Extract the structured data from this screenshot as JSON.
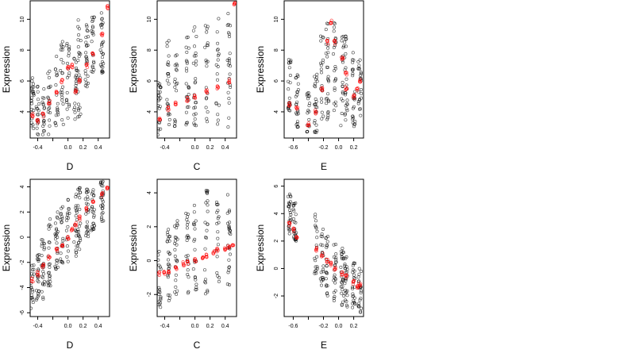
{
  "figure": {
    "background": "#ffffff",
    "point_color_black": "#000000",
    "point_color_red": "#ff0000"
  },
  "chart_data": [
    {
      "type": "scatter",
      "panel": "top-left",
      "xlabel": "D",
      "ylabel": "Expression",
      "xlim": [
        -0.5,
        0.55
      ],
      "ylim": [
        2.3,
        11.2
      ],
      "xticks": [
        -0.4,
        -0.2,
        0.0,
        0.2,
        0.4
      ],
      "xtick_labels": [
        "-0.4",
        "",
        "0.0",
        "0.2",
        "0.4"
      ],
      "yticks": [
        4,
        6,
        8,
        10
      ],
      "ytick_labels": [
        "4",
        "6",
        "8",
        "10"
      ],
      "black_columns": [
        {
          "x": -0.47,
          "ymin": 2.5,
          "ymax": 6.3
        },
        {
          "x": -0.4,
          "ymin": 2.5,
          "ymax": 5.8
        },
        {
          "x": -0.33,
          "ymin": 2.5,
          "ymax": 5.5
        },
        {
          "x": -0.25,
          "ymin": 2.5,
          "ymax": 7.0
        },
        {
          "x": -0.15,
          "ymin": 2.6,
          "ymax": 8.0
        },
        {
          "x": -0.08,
          "ymin": 3.0,
          "ymax": 8.6
        },
        {
          "x": 0.0,
          "ymin": 3.2,
          "ymax": 9.5
        },
        {
          "x": 0.1,
          "ymin": 3.5,
          "ymax": 7.5
        },
        {
          "x": 0.15,
          "ymin": 3.5,
          "ymax": 10.0
        },
        {
          "x": 0.25,
          "ymin": 5.5,
          "ymax": 9.8
        },
        {
          "x": 0.33,
          "ymin": 6.0,
          "ymax": 10.3
        },
        {
          "x": 0.45,
          "ymin": 6.5,
          "ymax": 10.5
        }
      ],
      "red_points": [
        {
          "x": -0.47,
          "y": 3.8
        },
        {
          "x": -0.4,
          "y": 3.4
        },
        {
          "x": -0.33,
          "y": 3.8
        },
        {
          "x": -0.25,
          "y": 4.6
        },
        {
          "x": -0.15,
          "y": 5.3
        },
        {
          "x": -0.08,
          "y": 6.0
        },
        {
          "x": 0.0,
          "y": 6.8
        },
        {
          "x": 0.05,
          "y": 7.0
        },
        {
          "x": 0.1,
          "y": 5.3
        },
        {
          "x": 0.15,
          "y": 6.0
        },
        {
          "x": 0.25,
          "y": 7.0
        },
        {
          "x": 0.33,
          "y": 7.8
        },
        {
          "x": 0.45,
          "y": 9.0
        },
        {
          "x": 0.52,
          "y": 10.8
        }
      ]
    },
    {
      "type": "scatter",
      "panel": "top-middle",
      "xlabel": "C",
      "ylabel": "Expression",
      "xlim": [
        -0.5,
        0.55
      ],
      "ylim": [
        2.3,
        11.2
      ],
      "xticks": [
        -0.4,
        -0.2,
        0.0,
        0.2,
        0.4
      ],
      "xtick_labels": [
        "-0.4",
        "",
        "0.0",
        "0.2",
        "0.4"
      ],
      "yticks": [
        4,
        6,
        8,
        10
      ],
      "ytick_labels": [
        "4",
        "6",
        "8",
        "10"
      ],
      "black_columns": [
        {
          "x": -0.47,
          "ymin": 2.5,
          "ymax": 6.0
        },
        {
          "x": -0.35,
          "ymin": 2.8,
          "ymax": 9.0
        },
        {
          "x": -0.25,
          "ymin": 3.0,
          "ymax": 8.5
        },
        {
          "x": -0.1,
          "ymin": 3.0,
          "ymax": 9.5
        },
        {
          "x": 0.0,
          "ymin": 3.0,
          "ymax": 10.0
        },
        {
          "x": 0.15,
          "ymin": 3.0,
          "ymax": 9.8
        },
        {
          "x": 0.3,
          "ymin": 3.0,
          "ymax": 10.5
        },
        {
          "x": 0.45,
          "ymin": 3.0,
          "ymax": 10.8
        }
      ],
      "red_points": [
        {
          "x": -0.47,
          "y": 3.5
        },
        {
          "x": -0.35,
          "y": 4.2
        },
        {
          "x": -0.25,
          "y": 4.5
        },
        {
          "x": -0.1,
          "y": 4.8
        },
        {
          "x": 0.0,
          "y": 5.0
        },
        {
          "x": 0.15,
          "y": 5.3
        },
        {
          "x": 0.3,
          "y": 5.6
        },
        {
          "x": 0.45,
          "y": 6.0
        },
        {
          "x": 0.52,
          "y": 11.0
        }
      ]
    },
    {
      "type": "scatter",
      "panel": "top-right",
      "xlabel": "E",
      "ylabel": "Expression",
      "xlim": [
        -0.72,
        0.33
      ],
      "ylim": [
        2.3,
        11.2
      ],
      "xticks": [
        -0.6,
        -0.4,
        -0.2,
        0.0,
        0.2
      ],
      "xtick_labels": [
        "-0.6",
        "",
        "-0.2",
        "0.0",
        "0.2"
      ],
      "yticks": [
        4,
        6,
        8,
        10
      ],
      "ytick_labels": [
        "4",
        "6",
        "8",
        "10"
      ],
      "black_columns": [
        {
          "x": -0.65,
          "ymin": 4.0,
          "ymax": 7.5
        },
        {
          "x": -0.55,
          "ymin": 3.0,
          "ymax": 6.5
        },
        {
          "x": -0.4,
          "ymin": 2.6,
          "ymax": 5.5
        },
        {
          "x": -0.3,
          "ymin": 2.6,
          "ymax": 6.5
        },
        {
          "x": -0.22,
          "ymin": 3.0,
          "ymax": 9.0
        },
        {
          "x": -0.15,
          "ymin": 3.5,
          "ymax": 10.5
        },
        {
          "x": -0.05,
          "ymin": 4.0,
          "ymax": 9.8
        },
        {
          "x": 0.05,
          "ymin": 3.0,
          "ymax": 9.5
        },
        {
          "x": 0.1,
          "ymin": 2.8,
          "ymax": 9.0
        },
        {
          "x": 0.2,
          "ymin": 3.0,
          "ymax": 8.0
        },
        {
          "x": 0.28,
          "ymin": 3.5,
          "ymax": 7.5
        }
      ],
      "red_points": [
        {
          "x": -0.65,
          "y": 4.5
        },
        {
          "x": -0.55,
          "y": 4.2
        },
        {
          "x": -0.4,
          "y": 3.2
        },
        {
          "x": -0.3,
          "y": 4.0
        },
        {
          "x": -0.22,
          "y": 5.5
        },
        {
          "x": -0.15,
          "y": 8.5
        },
        {
          "x": -0.1,
          "y": 9.8
        },
        {
          "x": -0.05,
          "y": 8.5
        },
        {
          "x": 0.05,
          "y": 7.5
        },
        {
          "x": 0.1,
          "y": 6.5
        },
        {
          "x": 0.1,
          "y": 5.5
        },
        {
          "x": 0.2,
          "y": 5.0
        },
        {
          "x": 0.25,
          "y": 5.5
        },
        {
          "x": 0.28,
          "y": 6.0
        }
      ]
    },
    {
      "type": "scatter",
      "panel": "bottom-left",
      "xlabel": "D",
      "ylabel": "Expression",
      "xlim": [
        -0.5,
        0.55
      ],
      "ylim": [
        -6.3,
        4.6
      ],
      "xticks": [
        -0.4,
        -0.2,
        0.0,
        0.2,
        0.4
      ],
      "xtick_labels": [
        "-0.4",
        "",
        "0.0",
        "0.2",
        "0.4"
      ],
      "yticks": [
        -6,
        -4,
        -2,
        0,
        2,
        4
      ],
      "ytick_labels": [
        "-6",
        "-4",
        "-2",
        "0",
        "2",
        "4"
      ],
      "black_columns": [
        {
          "x": -0.47,
          "ymin": -6.0,
          "ymax": -2.0
        },
        {
          "x": -0.4,
          "ymin": -5.5,
          "ymax": -1.0
        },
        {
          "x": -0.33,
          "ymin": -5.0,
          "ymax": 0.5
        },
        {
          "x": -0.25,
          "ymin": -4.0,
          "ymax": 1.5
        },
        {
          "x": -0.15,
          "ymin": -3.0,
          "ymax": 2.2
        },
        {
          "x": -0.08,
          "ymin": -2.5,
          "ymax": 2.5
        },
        {
          "x": 0.0,
          "ymin": -2.0,
          "ymax": 3.0
        },
        {
          "x": 0.1,
          "ymin": -1.5,
          "ymax": 3.5
        },
        {
          "x": 0.15,
          "ymin": -1.0,
          "ymax": 4.0
        },
        {
          "x": 0.25,
          "ymin": 0.0,
          "ymax": 4.0
        },
        {
          "x": 0.33,
          "ymin": 0.5,
          "ymax": 4.2
        },
        {
          "x": 0.45,
          "ymin": 1.0,
          "ymax": 4.5
        }
      ],
      "red_points": [
        {
          "x": -0.47,
          "y": -3.4
        },
        {
          "x": -0.4,
          "y": -2.9
        },
        {
          "x": -0.33,
          "y": -2.3
        },
        {
          "x": -0.25,
          "y": -1.6
        },
        {
          "x": -0.15,
          "y": -1.0
        },
        {
          "x": -0.08,
          "y": -0.6
        },
        {
          "x": 0.0,
          "y": 0.0
        },
        {
          "x": 0.05,
          "y": 0.6
        },
        {
          "x": 0.1,
          "y": 1.0
        },
        {
          "x": 0.15,
          "y": 1.5
        },
        {
          "x": 0.25,
          "y": 2.2
        },
        {
          "x": 0.33,
          "y": 2.7
        },
        {
          "x": 0.45,
          "y": 3.4
        },
        {
          "x": 0.52,
          "y": 3.8
        }
      ]
    },
    {
      "type": "scatter",
      "panel": "bottom-middle",
      "xlabel": "C",
      "ylabel": "Expression",
      "xlim": [
        -0.5,
        0.55
      ],
      "ylim": [
        -3.3,
        4.8
      ],
      "xticks": [
        -0.4,
        -0.2,
        0.0,
        0.2,
        0.4
      ],
      "xtick_labels": [
        "-0.4",
        "",
        "0.0",
        "0.2",
        "0.4"
      ],
      "yticks": [
        -2,
        0,
        2,
        4
      ],
      "ytick_labels": [
        "-2",
        "0",
        "2",
        "4"
      ],
      "black_columns": [
        {
          "x": -0.47,
          "ymin": -3.0,
          "ymax": 1.5
        },
        {
          "x": -0.35,
          "ymin": -2.5,
          "ymax": 2.0
        },
        {
          "x": -0.25,
          "ymin": -2.5,
          "ymax": 2.5
        },
        {
          "x": -0.1,
          "ymin": -2.0,
          "ymax": 3.0
        },
        {
          "x": 0.0,
          "ymin": -2.0,
          "ymax": 3.5
        },
        {
          "x": 0.15,
          "ymin": -2.0,
          "ymax": 4.3
        },
        {
          "x": 0.3,
          "ymin": -1.8,
          "ymax": 3.5
        },
        {
          "x": 0.45,
          "ymin": -1.5,
          "ymax": 4.0
        }
      ],
      "red_points": [
        {
          "x": -0.47,
          "y": -0.8
        },
        {
          "x": -0.4,
          "y": -0.7
        },
        {
          "x": -0.35,
          "y": -0.6
        },
        {
          "x": -0.25,
          "y": -0.4
        },
        {
          "x": -0.15,
          "y": -0.2
        },
        {
          "x": -0.1,
          "y": -0.1
        },
        {
          "x": 0.0,
          "y": 0.0
        },
        {
          "x": 0.1,
          "y": 0.2
        },
        {
          "x": 0.15,
          "y": 0.3
        },
        {
          "x": 0.25,
          "y": 0.5
        },
        {
          "x": 0.3,
          "y": 0.6
        },
        {
          "x": 0.4,
          "y": 0.7
        },
        {
          "x": 0.45,
          "y": 0.8
        },
        {
          "x": 0.5,
          "y": 0.9
        }
      ]
    },
    {
      "type": "scatter",
      "panel": "bottom-right",
      "xlabel": "E",
      "ylabel": "Expression",
      "xlim": [
        -0.72,
        0.33
      ],
      "ylim": [
        -3.5,
        6.5
      ],
      "xticks": [
        -0.6,
        -0.4,
        -0.2,
        0.0,
        0.2
      ],
      "xtick_labels": [
        "-0.6",
        "",
        "-0.2",
        "0.0",
        "0.2"
      ],
      "yticks": [
        -2,
        0,
        2,
        4,
        6
      ],
      "ytick_labels": [
        "-2",
        "0",
        "2",
        "4",
        "6"
      ],
      "black_columns": [
        {
          "x": -0.65,
          "ymin": 2.5,
          "ymax": 5.5
        },
        {
          "x": -0.58,
          "ymin": 2.0,
          "ymax": 5.0
        },
        {
          "x": -0.3,
          "ymin": -1.0,
          "ymax": 4.0
        },
        {
          "x": -0.22,
          "ymin": -1.5,
          "ymax": 3.0
        },
        {
          "x": -0.15,
          "ymin": -2.0,
          "ymax": 2.5
        },
        {
          "x": -0.05,
          "ymin": -2.5,
          "ymax": 2.0
        },
        {
          "x": 0.05,
          "ymin": -2.8,
          "ymax": 1.5
        },
        {
          "x": 0.1,
          "ymin": -3.0,
          "ymax": 1.0
        },
        {
          "x": 0.2,
          "ymin": -3.0,
          "ymax": 0.5
        },
        {
          "x": 0.28,
          "ymin": -3.2,
          "ymax": 0.0
        }
      ],
      "red_points": [
        {
          "x": -0.65,
          "y": 3.2
        },
        {
          "x": -0.6,
          "y": 2.8
        },
        {
          "x": -0.55,
          "y": 2.3
        },
        {
          "x": -0.3,
          "y": 1.4
        },
        {
          "x": -0.22,
          "y": 1.0
        },
        {
          "x": -0.15,
          "y": 0.6
        },
        {
          "x": -0.1,
          "y": 0.3
        },
        {
          "x": -0.05,
          "y": 0.0
        },
        {
          "x": 0.05,
          "y": -0.4
        },
        {
          "x": 0.1,
          "y": -0.6
        },
        {
          "x": 0.2,
          "y": -1.0
        },
        {
          "x": 0.25,
          "y": -1.3
        },
        {
          "x": 0.28,
          "y": -1.2
        }
      ]
    }
  ]
}
